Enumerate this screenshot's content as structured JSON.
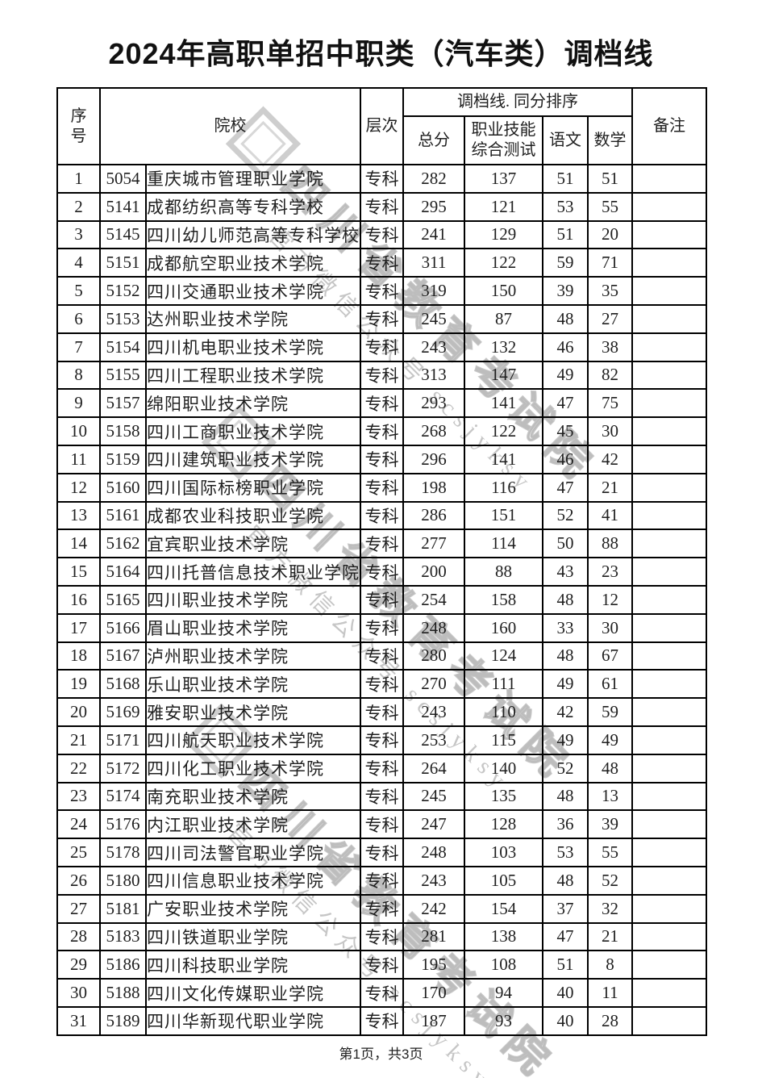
{
  "page": {
    "title": "2024年高职单招中职类（汽车类）调档线",
    "footer": "第1页，共3页"
  },
  "watermark": {
    "line1": "四川省教育考试院",
    "line2": "官方微信公众号 scsjyksy"
  },
  "table": {
    "headers": {
      "xuhao_line1": "序",
      "xuhao_line2": "号",
      "yuanxiao": "院校",
      "cengci": "层次",
      "diaodang_group": "调档线. 同分排序",
      "zongfen": "总分",
      "skill_line1": "职业技能",
      "skill_line2": "综合测试",
      "yuwen": "语文",
      "shuxue": "数学",
      "beizhu": "备注"
    },
    "rows": [
      {
        "no": "1",
        "code": "5054",
        "name": "重庆城市管理职业学院",
        "level": "专科",
        "total": "282",
        "skill": "137",
        "chinese": "51",
        "math": "51",
        "note": ""
      },
      {
        "no": "2",
        "code": "5141",
        "name": "成都纺织高等专科学校",
        "level": "专科",
        "total": "295",
        "skill": "121",
        "chinese": "53",
        "math": "55",
        "note": ""
      },
      {
        "no": "3",
        "code": "5145",
        "name": "四川幼儿师范高等专科学校",
        "level": "专科",
        "total": "241",
        "skill": "129",
        "chinese": "51",
        "math": "20",
        "note": ""
      },
      {
        "no": "4",
        "code": "5151",
        "name": "成都航空职业技术学院",
        "level": "专科",
        "total": "311",
        "skill": "122",
        "chinese": "59",
        "math": "71",
        "note": ""
      },
      {
        "no": "5",
        "code": "5152",
        "name": "四川交通职业技术学院",
        "level": "专科",
        "total": "319",
        "skill": "150",
        "chinese": "39",
        "math": "35",
        "note": ""
      },
      {
        "no": "6",
        "code": "5153",
        "name": "达州职业技术学院",
        "level": "专科",
        "total": "245",
        "skill": "87",
        "chinese": "48",
        "math": "27",
        "note": ""
      },
      {
        "no": "7",
        "code": "5154",
        "name": "四川机电职业技术学院",
        "level": "专科",
        "total": "243",
        "skill": "132",
        "chinese": "46",
        "math": "38",
        "note": ""
      },
      {
        "no": "8",
        "code": "5155",
        "name": "四川工程职业技术学院",
        "level": "专科",
        "total": "313",
        "skill": "147",
        "chinese": "49",
        "math": "82",
        "note": ""
      },
      {
        "no": "9",
        "code": "5157",
        "name": "绵阳职业技术学院",
        "level": "专科",
        "total": "293",
        "skill": "141",
        "chinese": "47",
        "math": "75",
        "note": ""
      },
      {
        "no": "10",
        "code": "5158",
        "name": "四川工商职业技术学院",
        "level": "专科",
        "total": "268",
        "skill": "122",
        "chinese": "45",
        "math": "30",
        "note": ""
      },
      {
        "no": "11",
        "code": "5159",
        "name": "四川建筑职业技术学院",
        "level": "专科",
        "total": "296",
        "skill": "141",
        "chinese": "46",
        "math": "42",
        "note": ""
      },
      {
        "no": "12",
        "code": "5160",
        "name": "四川国际标榜职业学院",
        "level": "专科",
        "total": "198",
        "skill": "116",
        "chinese": "47",
        "math": "21",
        "note": ""
      },
      {
        "no": "13",
        "code": "5161",
        "name": "成都农业科技职业学院",
        "level": "专科",
        "total": "286",
        "skill": "151",
        "chinese": "52",
        "math": "41",
        "note": ""
      },
      {
        "no": "14",
        "code": "5162",
        "name": "宜宾职业技术学院",
        "level": "专科",
        "total": "277",
        "skill": "114",
        "chinese": "50",
        "math": "88",
        "note": ""
      },
      {
        "no": "15",
        "code": "5164",
        "name": "四川托普信息技术职业学院",
        "level": "专科",
        "total": "200",
        "skill": "88",
        "chinese": "43",
        "math": "23",
        "note": ""
      },
      {
        "no": "16",
        "code": "5165",
        "name": "四川职业技术学院",
        "level": "专科",
        "total": "254",
        "skill": "158",
        "chinese": "48",
        "math": "12",
        "note": ""
      },
      {
        "no": "17",
        "code": "5166",
        "name": "眉山职业技术学院",
        "level": "专科",
        "total": "248",
        "skill": "160",
        "chinese": "33",
        "math": "30",
        "note": ""
      },
      {
        "no": "18",
        "code": "5167",
        "name": "泸州职业技术学院",
        "level": "专科",
        "total": "280",
        "skill": "124",
        "chinese": "48",
        "math": "67",
        "note": ""
      },
      {
        "no": "19",
        "code": "5168",
        "name": "乐山职业技术学院",
        "level": "专科",
        "total": "270",
        "skill": "111",
        "chinese": "49",
        "math": "61",
        "note": ""
      },
      {
        "no": "20",
        "code": "5169",
        "name": "雅安职业技术学院",
        "level": "专科",
        "total": "243",
        "skill": "110",
        "chinese": "42",
        "math": "59",
        "note": ""
      },
      {
        "no": "21",
        "code": "5171",
        "name": "四川航天职业技术学院",
        "level": "专科",
        "total": "253",
        "skill": "115",
        "chinese": "49",
        "math": "49",
        "note": ""
      },
      {
        "no": "22",
        "code": "5172",
        "name": "四川化工职业技术学院",
        "level": "专科",
        "total": "264",
        "skill": "140",
        "chinese": "52",
        "math": "48",
        "note": ""
      },
      {
        "no": "23",
        "code": "5174",
        "name": "南充职业技术学院",
        "level": "专科",
        "total": "245",
        "skill": "135",
        "chinese": "48",
        "math": "13",
        "note": ""
      },
      {
        "no": "24",
        "code": "5176",
        "name": "内江职业技术学院",
        "level": "专科",
        "total": "247",
        "skill": "128",
        "chinese": "36",
        "math": "39",
        "note": ""
      },
      {
        "no": "25",
        "code": "5178",
        "name": "四川司法警官职业学院",
        "level": "专科",
        "total": "248",
        "skill": "103",
        "chinese": "53",
        "math": "55",
        "note": ""
      },
      {
        "no": "26",
        "code": "5180",
        "name": "四川信息职业技术学院",
        "level": "专科",
        "total": "243",
        "skill": "105",
        "chinese": "48",
        "math": "52",
        "note": ""
      },
      {
        "no": "27",
        "code": "5181",
        "name": "广安职业技术学院",
        "level": "专科",
        "total": "242",
        "skill": "154",
        "chinese": "37",
        "math": "32",
        "note": ""
      },
      {
        "no": "28",
        "code": "5183",
        "name": "四川铁道职业学院",
        "level": "专科",
        "total": "281",
        "skill": "138",
        "chinese": "47",
        "math": "21",
        "note": ""
      },
      {
        "no": "29",
        "code": "5186",
        "name": "四川科技职业学院",
        "level": "专科",
        "total": "195",
        "skill": "108",
        "chinese": "51",
        "math": "8",
        "note": ""
      },
      {
        "no": "30",
        "code": "5188",
        "name": "四川文化传媒职业学院",
        "level": "专科",
        "total": "170",
        "skill": "94",
        "chinese": "40",
        "math": "11",
        "note": ""
      },
      {
        "no": "31",
        "code": "5189",
        "name": "四川华新现代职业学院",
        "level": "专科",
        "total": "187",
        "skill": "93",
        "chinese": "40",
        "math": "28",
        "note": ""
      }
    ]
  }
}
